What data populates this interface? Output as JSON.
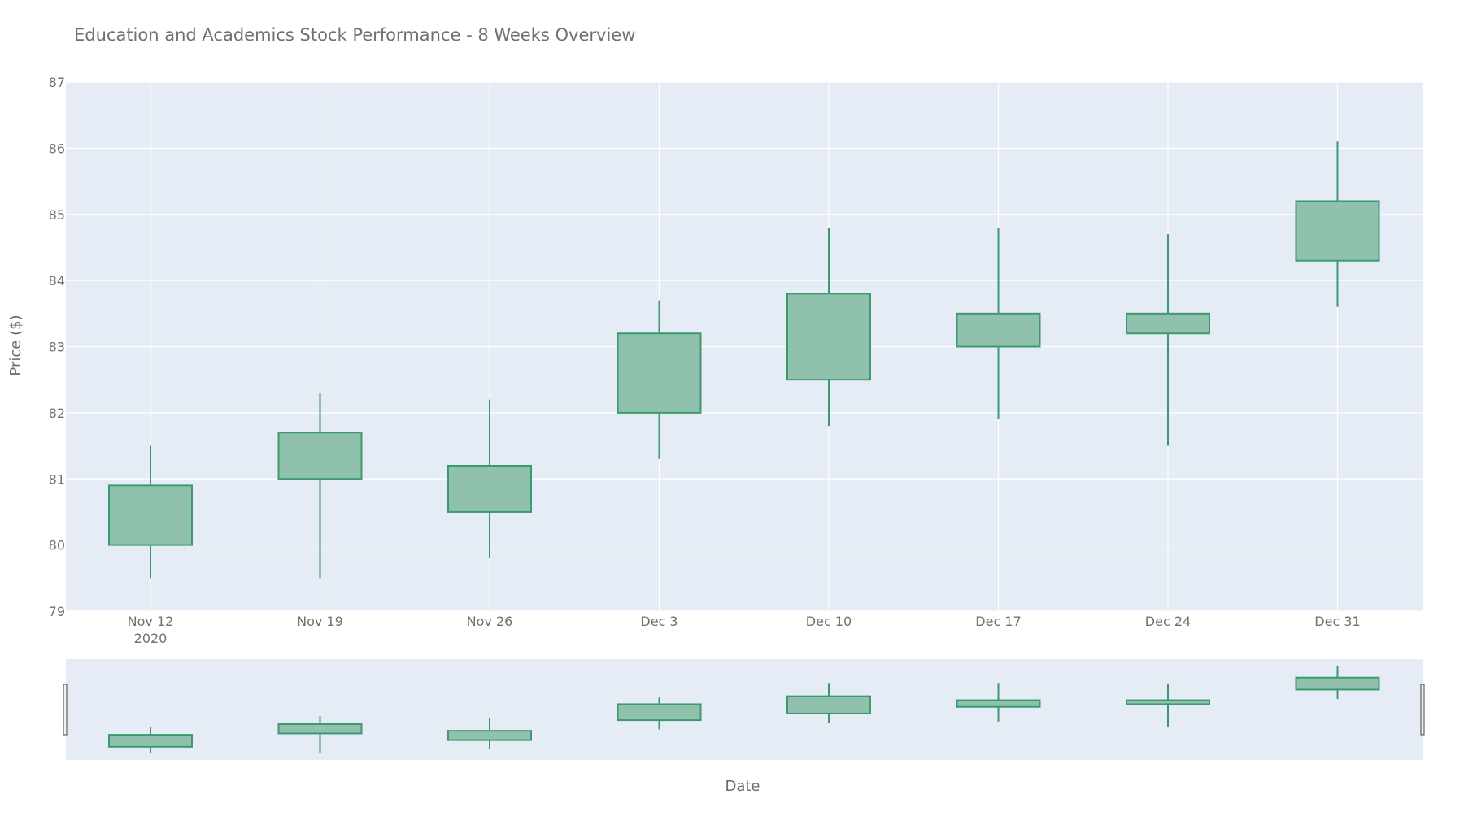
{
  "colors": {
    "plot_background": "#e5ecf6",
    "grid": "#ffffff",
    "increasing_line": "#3d9970",
    "increasing_fill": "#8fc1ad",
    "text": "#707070"
  },
  "chart_data": {
    "type": "candlestick",
    "title": "Education and Academics Stock Performance - 8 Weeks Overview",
    "xlabel": "Date",
    "ylabel": "Price ($)",
    "ylim": [
      79,
      87
    ],
    "yticks": [
      79,
      80,
      81,
      82,
      83,
      84,
      85,
      86,
      87
    ],
    "grid": true,
    "rangeslider": true,
    "x_tick_labels": [
      "Nov 12",
      "Nov 19",
      "Nov 26",
      "Dec 3",
      "Dec 10",
      "Dec 17",
      "Dec 24",
      "Dec 31"
    ],
    "x_tick_sublabel": "2020",
    "dates": [
      "2020-11-12",
      "2020-11-19",
      "2020-11-26",
      "2020-12-03",
      "2020-12-10",
      "2020-12-17",
      "2020-12-24",
      "2020-12-31"
    ],
    "open": [
      80.0,
      81.0,
      80.5,
      82.0,
      82.5,
      83.0,
      83.2,
      84.3
    ],
    "high": [
      81.5,
      82.3,
      82.2,
      83.7,
      84.8,
      84.8,
      84.7,
      86.1
    ],
    "low": [
      79.5,
      79.5,
      79.8,
      81.3,
      81.8,
      81.9,
      81.5,
      83.6
    ],
    "close": [
      80.9,
      81.7,
      81.2,
      83.2,
      83.8,
      83.5,
      83.5,
      85.2
    ]
  }
}
